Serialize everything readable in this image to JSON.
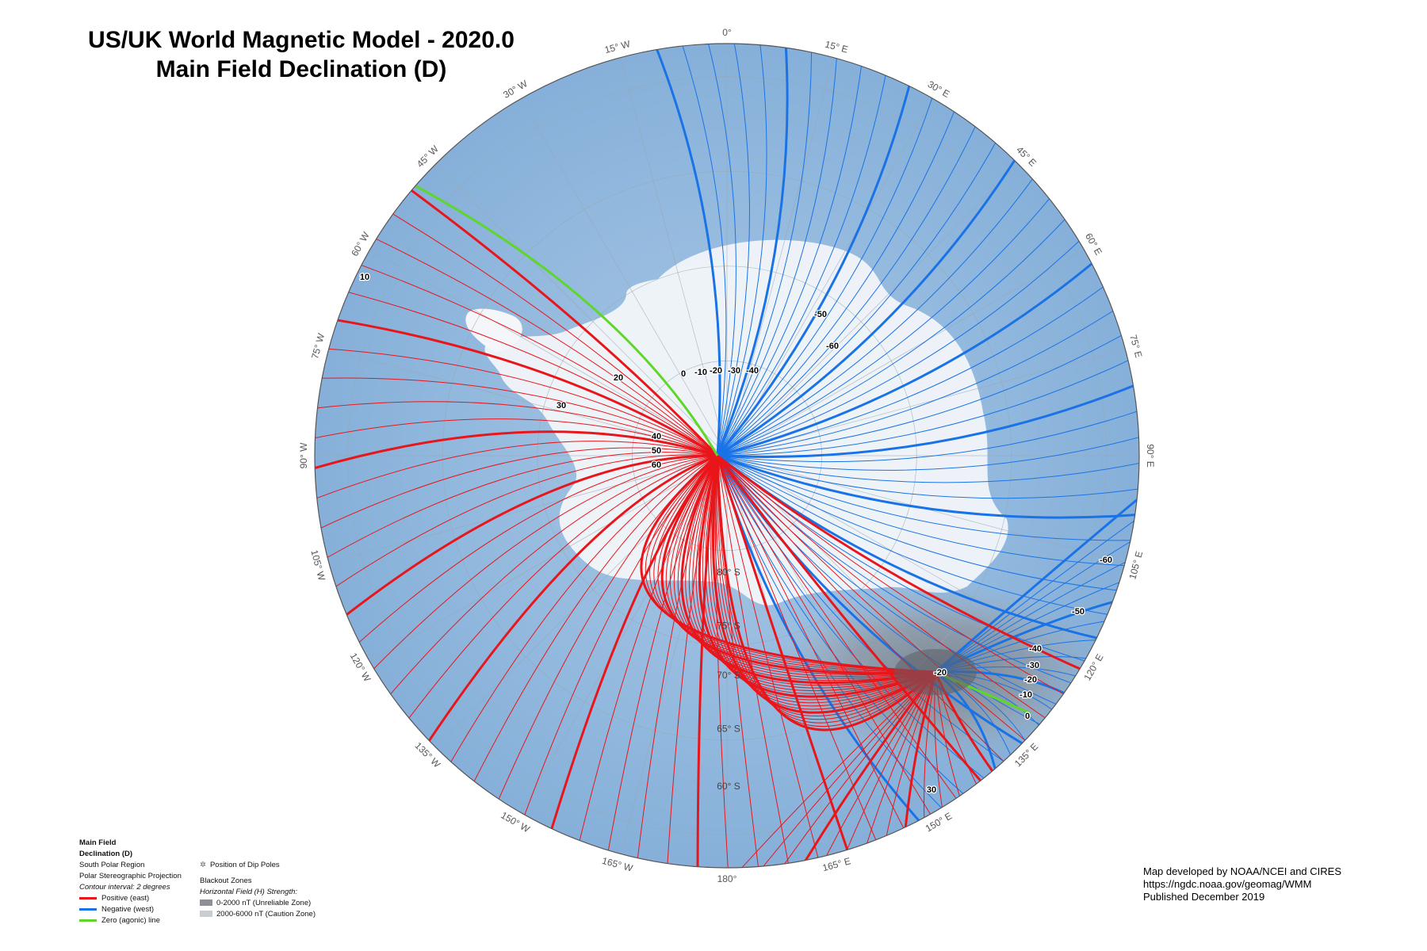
{
  "title": {
    "line1": "US/UK World Magnetic Model - 2020.0",
    "line2": "Main Field Declination (D)"
  },
  "map": {
    "projection": "Polar Stereographic Projection",
    "longitude_labels": [
      "0°",
      "15° E",
      "30° E",
      "45° E",
      "60° E",
      "75° E",
      "90° E",
      "105° E",
      "120° E",
      "135° E",
      "150° E",
      "165° E",
      "180°",
      "165° W",
      "150° W",
      "135° W",
      "120° W",
      "105° W",
      "90° W",
      "75° W",
      "60° W",
      "45° W",
      "30° W",
      "15° W"
    ],
    "latitude_labels": [
      "80° S",
      "75° S",
      "70° S",
      "65° S",
      "60° S"
    ],
    "colors": {
      "ocean": "#8fb7dd",
      "ice": "#f4f6fa",
      "positive": "#e8161b",
      "negative": "#1a73e6",
      "zero": "#5ed62a",
      "blackout": "#9aa0a6"
    },
    "contour_labels_positive": [
      "10",
      "20",
      "30",
      "40",
      "50",
      "60",
      "30"
    ],
    "contour_labels_negative": [
      "-10",
      "-20",
      "-30",
      "-40",
      "-50",
      "-60",
      "-60",
      "-50",
      "-40",
      "-30",
      "-20",
      "-10",
      "-20"
    ],
    "contour_labels_zero": [
      "0",
      "0"
    ]
  },
  "legend": {
    "title_line1": "Main Field",
    "title_line2": "Declination (D)",
    "region": "South Polar Region",
    "projection": "Polar Stereographic Projection",
    "interval": "Contour interval: 2 degrees",
    "positive": "Positive (east)",
    "negative": "Negative (west)",
    "zero": "Zero (agonic) line",
    "dip_poles": "Position of Dip Poles",
    "blackout_title": "Blackout Zones",
    "blackout_sub": "Horizontal Field (H) Strength:",
    "zone1": "0-2000 nT (Unreliable Zone)",
    "zone2": "2000-6000 nT (Caution Zone)"
  },
  "credits": {
    "line1": "Map developed by NOAA/NCEI and CIRES",
    "line2": "https://ngdc.noaa.gov/geomag/WMM",
    "line3": "Published December 2019"
  }
}
